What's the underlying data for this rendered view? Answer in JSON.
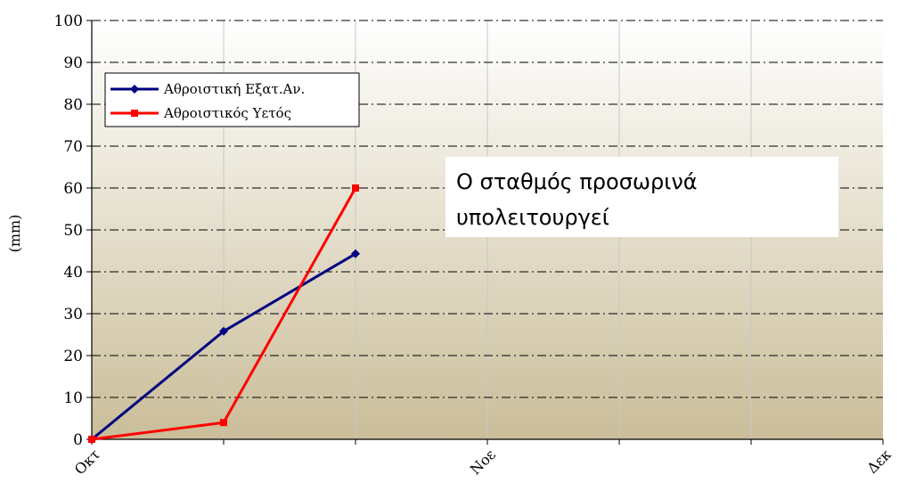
{
  "chart_data": {
    "type": "line",
    "title": "",
    "xlabel": "",
    "ylabel": "(mm)",
    "ylim": [
      0,
      100
    ],
    "yticks": [
      "0",
      "10",
      "20",
      "30",
      "40",
      "50",
      "60",
      "70",
      "80",
      "90",
      "100"
    ],
    "x_tick_labels": [
      {
        "label": "Οκτ",
        "pos": 0
      },
      {
        "label": "Νοε",
        "pos": 3
      },
      {
        "label": "Δεκ",
        "pos": 6
      }
    ],
    "x_range": [
      0,
      6
    ],
    "series": [
      {
        "name": "Αθροιστική Εξατ.Αν.",
        "x": [
          0,
          1,
          2
        ],
        "values": [
          0,
          25.8,
          44.3
        ],
        "color": "#000080",
        "marker": "diamond"
      },
      {
        "name": "Αθροιστικός Υετός",
        "x": [
          0,
          1,
          2
        ],
        "values": [
          0,
          4,
          60
        ],
        "color": "#ff0000",
        "marker": "square"
      }
    ],
    "grid": true,
    "legend_position": "top-left",
    "annotation": {
      "lines": [
        "Ο σταθμός προσωρινά",
        "υπολειτουργεί"
      ]
    },
    "colors": {
      "plot_bg_top": "#ffffff",
      "plot_bg_bottom": "#cabd99",
      "grid": "#000000",
      "vgrid": "#c8c8c8"
    }
  }
}
